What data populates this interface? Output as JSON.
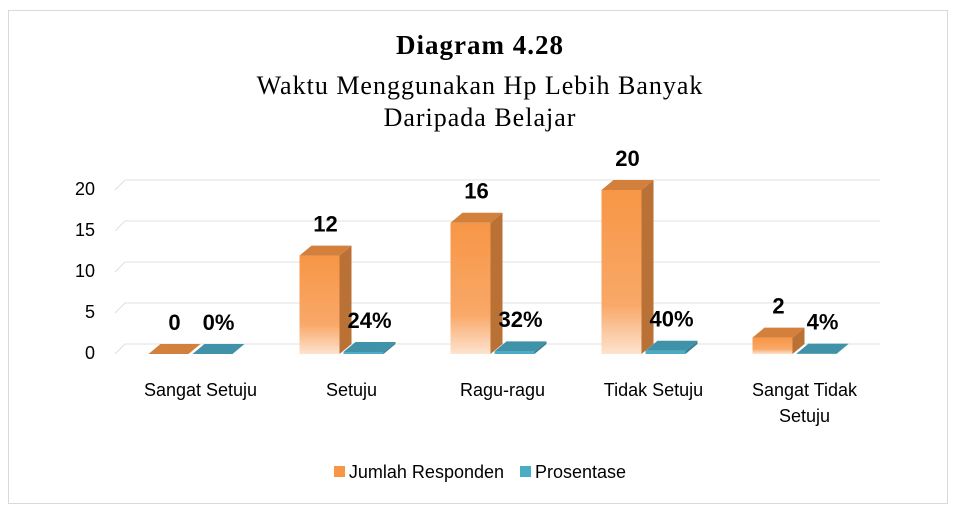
{
  "chart_data": {
    "type": "bar3d",
    "title": "Diagram 4.28",
    "subtitle": "Waktu Menggunakan Hp Lebih Banyak Daripada Belajar",
    "categories": [
      "Sangat Setuju",
      "Setuju",
      "Ragu-ragu",
      "Tidak Setuju",
      "Sangat Tidak Setuju"
    ],
    "series": [
      {
        "name": "Jumlah Responden",
        "color": "#f79646",
        "values": [
          0,
          12,
          16,
          20,
          2
        ]
      },
      {
        "name": "Prosentase",
        "color": "#4bacc6",
        "values": [
          0,
          0.24,
          0.32,
          0.4,
          0.04
        ],
        "value_labels": [
          "0%",
          "24%",
          "32%",
          "40%",
          "4%"
        ]
      }
    ],
    "ylim": [
      0,
      20
    ],
    "yticks": [
      0,
      5,
      10,
      15,
      20
    ],
    "grid": true,
    "legend": "bottom"
  }
}
